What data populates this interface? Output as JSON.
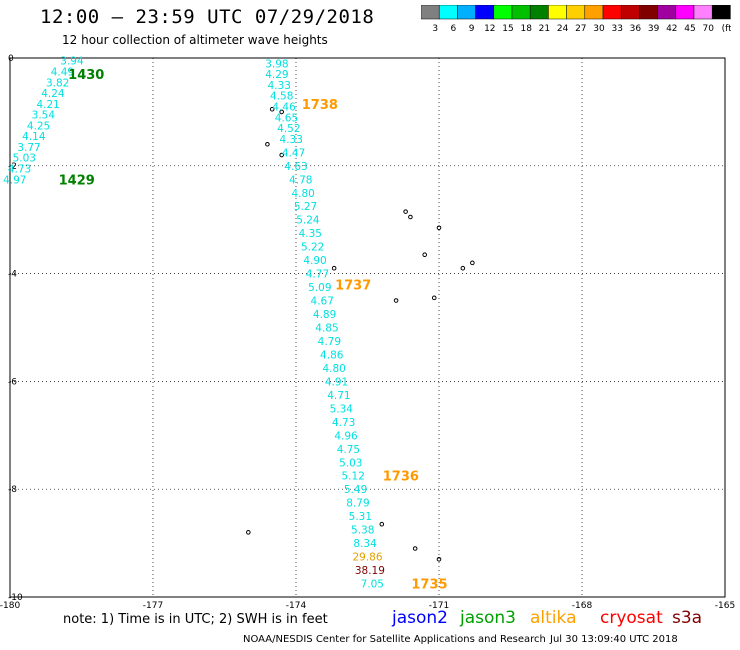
{
  "header": {
    "title": "12:00 — 23:59 UTC 07/29/2018",
    "subtitle": "12 hour collection of altimeter wave heights"
  },
  "color_scale": {
    "labels": [
      "3",
      "6",
      "9",
      "12",
      "15",
      "18",
      "21",
      "24",
      "27",
      "30",
      "33",
      "36",
      "39",
      "42",
      "45",
      "70",
      "(ft)"
    ],
    "colors": [
      "#808080",
      "#00ffff",
      "#00b0ff",
      "#0000ff",
      "#00ff00",
      "#00c000",
      "#008000",
      "#ffff00",
      "#ffd000",
      "#ffa000",
      "#ff0000",
      "#c00000",
      "#800000",
      "#a000a0",
      "#ff00ff",
      "#ff80ff",
      "#000000"
    ]
  },
  "chart_data": {
    "type": "scatter",
    "xlim": [
      -180,
      -165
    ],
    "ylim": [
      -10,
      0
    ],
    "x_ticks": [
      "-180",
      "-177",
      "-174",
      "-171",
      "-168",
      "-165"
    ],
    "y_ticks": [
      "0",
      "-2",
      "-4",
      "-6",
      "-8",
      "-10"
    ],
    "grid": true,
    "series": [
      {
        "name": "jason3",
        "color": "#00e0e0",
        "points": [
          {
            "x": -178.7,
            "y": -0.05,
            "label": "3.94"
          },
          {
            "x": -178.9,
            "y": -0.25,
            "label": "4.49"
          },
          {
            "x": -179.0,
            "y": -0.45,
            "label": "3.82"
          },
          {
            "x": -179.1,
            "y": -0.65,
            "label": "4.24"
          },
          {
            "x": -179.2,
            "y": -0.85,
            "label": "4.21"
          },
          {
            "x": -179.3,
            "y": -1.05,
            "label": "3.54"
          },
          {
            "x": -179.4,
            "y": -1.25,
            "label": "4.25"
          },
          {
            "x": -179.5,
            "y": -1.45,
            "label": "4.14"
          },
          {
            "x": -179.6,
            "y": -1.65,
            "label": "3.77"
          },
          {
            "x": -179.7,
            "y": -1.85,
            "label": "5.03"
          },
          {
            "x": -179.8,
            "y": -2.05,
            "label": "4.73"
          },
          {
            "x": -179.9,
            "y": -2.25,
            "label": "4.97"
          }
        ]
      },
      {
        "name": "altika",
        "color": "#00e0e0",
        "points": [
          {
            "x": -174.4,
            "y": -0.1,
            "label": "3.98"
          },
          {
            "x": -174.4,
            "y": -0.3,
            "label": "4.29"
          },
          {
            "x": -174.35,
            "y": -0.5,
            "label": "4.33"
          },
          {
            "x": -174.3,
            "y": -0.7,
            "label": "4.58"
          },
          {
            "x": -174.25,
            "y": -0.9,
            "label": "4.46"
          },
          {
            "x": -174.2,
            "y": -1.1,
            "label": "4.65"
          },
          {
            "x": -174.15,
            "y": -1.3,
            "label": "4.52"
          },
          {
            "x": -174.1,
            "y": -1.5,
            "label": "4.33"
          },
          {
            "x": -174.05,
            "y": -1.75,
            "label": "4.47"
          },
          {
            "x": -174.0,
            "y": -2.0,
            "label": "4.63"
          },
          {
            "x": -173.9,
            "y": -2.25,
            "label": "4.78"
          },
          {
            "x": -173.85,
            "y": -2.5,
            "label": "4.80"
          },
          {
            "x": -173.8,
            "y": -2.75,
            "label": "5.27"
          },
          {
            "x": -173.75,
            "y": -3.0,
            "label": "5.24"
          },
          {
            "x": -173.7,
            "y": -3.25,
            "label": "4.35"
          },
          {
            "x": -173.65,
            "y": -3.5,
            "label": "5.22"
          },
          {
            "x": -173.6,
            "y": -3.75,
            "label": "4.90"
          },
          {
            "x": -173.55,
            "y": -4.0,
            "label": "4.77"
          },
          {
            "x": -173.5,
            "y": -4.25,
            "label": "5.09"
          },
          {
            "x": -173.45,
            "y": -4.5,
            "label": "4.67"
          },
          {
            "x": -173.4,
            "y": -4.75,
            "label": "4.89"
          },
          {
            "x": -173.35,
            "y": -5.0,
            "label": "4.85"
          },
          {
            "x": -173.3,
            "y": -5.25,
            "label": "4.79"
          },
          {
            "x": -173.25,
            "y": -5.5,
            "label": "4.86"
          },
          {
            "x": -173.2,
            "y": -5.75,
            "label": "4.80"
          },
          {
            "x": -173.15,
            "y": -6.0,
            "label": "4.91"
          },
          {
            "x": -173.1,
            "y": -6.25,
            "label": "4.71"
          },
          {
            "x": -173.05,
            "y": -6.5,
            "label": "5.34"
          },
          {
            "x": -173.0,
            "y": -6.75,
            "label": "4.73"
          },
          {
            "x": -172.95,
            "y": -7.0,
            "label": "4.96"
          },
          {
            "x": -172.9,
            "y": -7.25,
            "label": "4.75"
          },
          {
            "x": -172.85,
            "y": -7.5,
            "label": "5.03"
          },
          {
            "x": -172.8,
            "y": -7.75,
            "label": "5.12"
          },
          {
            "x": -172.75,
            "y": -8.0,
            "label": "5.49"
          },
          {
            "x": -172.7,
            "y": -8.25,
            "label": "8.79"
          },
          {
            "x": -172.65,
            "y": -8.5,
            "label": "5.31"
          },
          {
            "x": -172.6,
            "y": -8.75,
            "label": "5.38"
          },
          {
            "x": -172.55,
            "y": -9.0,
            "label": "8.34"
          },
          {
            "x": -172.5,
            "y": -9.25,
            "label": "29.86",
            "color": "#e0a000"
          },
          {
            "x": -172.45,
            "y": -9.5,
            "label": "38.19",
            "color": "#800000"
          },
          {
            "x": -172.4,
            "y": -9.75,
            "label": "7.05"
          }
        ]
      }
    ],
    "annotations": [
      {
        "x": -178.4,
        "y": -0.3,
        "label": "1430",
        "color": "#008000"
      },
      {
        "x": -178.6,
        "y": -2.25,
        "label": "1429",
        "color": "#008000"
      },
      {
        "x": -173.5,
        "y": -0.85,
        "label": "1738",
        "color": "#ff9900"
      },
      {
        "x": -172.8,
        "y": -4.2,
        "label": "1737",
        "color": "#ff9900"
      },
      {
        "x": -171.8,
        "y": -7.75,
        "label": "1736",
        "color": "#ff9900"
      },
      {
        "x": -171.2,
        "y": -9.75,
        "label": "1735",
        "color": "#ff9900"
      }
    ]
  },
  "footer": {
    "note": "note:  1) Time is in UTC;  2) SWH is in feet",
    "satellites": [
      {
        "name": "jason2",
        "color": "#0000ff"
      },
      {
        "name": "jason3",
        "color": "#00a000"
      },
      {
        "name": "altika",
        "color": "#ffa000"
      },
      {
        "name": "cryosat",
        "color": "#ff0000"
      },
      {
        "name": "s3a",
        "color": "#800000"
      }
    ],
    "credit": "NOAA/NESDIS Center for Satellite Applications and Research",
    "timestamp": "Jul 30 13:09:40 UTC 2018"
  }
}
